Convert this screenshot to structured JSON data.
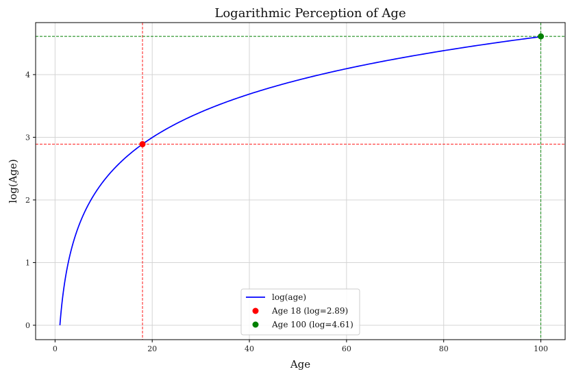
{
  "chart_data": {
    "type": "line",
    "title": "Logarithmic Perception of Age",
    "xlabel": "Age",
    "ylabel": "log(Age)",
    "xlim": [
      -4,
      105
    ],
    "ylim": [
      -0.23,
      4.83
    ],
    "xticks": [
      0,
      20,
      40,
      60,
      80,
      100
    ],
    "yticks": [
      0,
      1,
      2,
      3,
      4
    ],
    "grid": true,
    "legend_position": "bottom-center",
    "series": [
      {
        "name": "log(age)",
        "color": "#0000ff",
        "function": "ln(x)",
        "x_range": [
          1,
          100
        ],
        "x": [
          1,
          2,
          3,
          5,
          8,
          10,
          15,
          18,
          20,
          30,
          40,
          50,
          60,
          70,
          80,
          90,
          100
        ],
        "y": [
          0.0,
          0.69,
          1.1,
          1.61,
          2.08,
          2.3,
          2.71,
          2.89,
          3.0,
          3.4,
          3.69,
          3.91,
          4.09,
          4.25,
          4.38,
          4.5,
          4.61
        ]
      }
    ],
    "points": [
      {
        "name": "Age 18 (log=2.89)",
        "x": 18,
        "y": 2.89,
        "color": "#ff0000"
      },
      {
        "name": "Age 100 (log=4.61)",
        "x": 100,
        "y": 4.61,
        "color": "#008000"
      }
    ],
    "reference_lines": [
      {
        "orientation": "vertical",
        "value": 18,
        "color": "#ff0000",
        "style": "dashed"
      },
      {
        "orientation": "horizontal",
        "value": 2.89,
        "color": "#ff0000",
        "style": "dashed"
      },
      {
        "orientation": "vertical",
        "value": 100,
        "color": "#008000",
        "style": "dashed"
      },
      {
        "orientation": "horizontal",
        "value": 4.61,
        "color": "#008000",
        "style": "dashed"
      }
    ]
  }
}
